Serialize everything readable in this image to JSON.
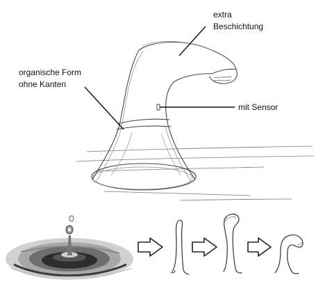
{
  "annotations": {
    "coating": {
      "line1": "extra",
      "line2": "Beschichtung"
    },
    "shape": {
      "line1": "organische Form",
      "line2": "ohne Kanten"
    },
    "sensor": {
      "line1": "mit Sensor"
    }
  },
  "colors": {
    "ink": "#111111",
    "sketch": "#444444",
    "arrow": "#222222"
  },
  "evolution_icons": [
    "water-splash-drop",
    "arrow-right-icon",
    "stem-stage-1",
    "arrow-right-icon",
    "stem-stage-2",
    "arrow-right-icon",
    "stem-stage-3-faucet"
  ]
}
